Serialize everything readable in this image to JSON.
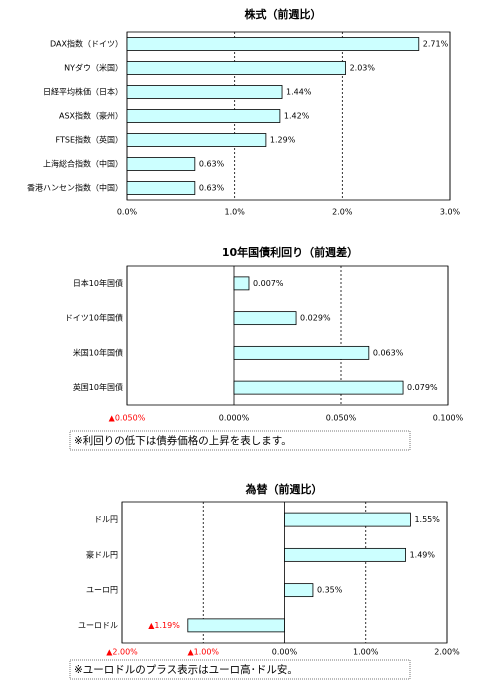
{
  "chart_data": [
    {
      "type": "hbar",
      "title": "株式（前週比）",
      "categories": [
        "DAX指数（ドイツ）",
        "NYダウ（米国）",
        "日経平均株価（日本）",
        "ASX指数（豪州）",
        "FTSE指数（英国）",
        "上海総合指数（中国）",
        "香港ハンセン指数（中国）"
      ],
      "values": [
        2.71,
        2.03,
        1.44,
        1.42,
        1.29,
        0.63,
        0.63
      ],
      "value_labels": [
        "2.71%",
        "2.03%",
        "1.44%",
        "1.42%",
        "1.29%",
        "0.63%",
        "0.63%"
      ],
      "xlim": [
        0,
        3
      ],
      "xticks": [
        {
          "value": 0,
          "label": "0.0%"
        },
        {
          "value": 1,
          "label": "1.0%"
        },
        {
          "value": 2,
          "label": "2.0%"
        },
        {
          "value": 3,
          "label": "3.0%"
        }
      ],
      "color": "#ccffff",
      "negative_label_color": "#ff0000",
      "grid": true
    },
    {
      "type": "hbar",
      "title": "10年国債利回り（前週差）",
      "categories": [
        "日本10年国債",
        "ドイツ10年国債",
        "米国10年国債",
        "英国10年国債"
      ],
      "values": [
        0.007,
        0.029,
        0.063,
        0.079
      ],
      "value_labels": [
        "0.007%",
        "0.029%",
        "0.063%",
        "0.079%"
      ],
      "xlim": [
        -0.05,
        0.1
      ],
      "xticks": [
        {
          "value": -0.05,
          "label": "▲0.050%"
        },
        {
          "value": 0,
          "label": "0.000%"
        },
        {
          "value": 0.05,
          "label": "0.050%"
        },
        {
          "value": 0.1,
          "label": "0.100%"
        }
      ],
      "color": "#ccffff",
      "negative_label_color": "#ff0000",
      "grid": true,
      "note": "※利回りの低下は債券価格の上昇を表します。"
    },
    {
      "type": "hbar",
      "title": "為替（前週比）",
      "categories": [
        "ドル円",
        "豪ドル円",
        "ユーロ円",
        "ユーロドル"
      ],
      "values": [
        1.55,
        1.49,
        0.35,
        -1.19
      ],
      "value_labels": [
        "1.55%",
        "1.49%",
        "0.35%",
        "▲1.19%"
      ],
      "xlim": [
        -2,
        2
      ],
      "xticks": [
        {
          "value": -2,
          "label": "▲2.00%"
        },
        {
          "value": -1,
          "label": "▲1.00%"
        },
        {
          "value": 0,
          "label": "0.00%"
        },
        {
          "value": 1,
          "label": "1.00%"
        },
        {
          "value": 2,
          "label": "2.00%"
        }
      ],
      "color": "#ccffff",
      "negative_label_color": "#ff0000",
      "grid": true,
      "note": "※ユーロドルのプラス表示はユーロ高･ドル安。"
    }
  ]
}
